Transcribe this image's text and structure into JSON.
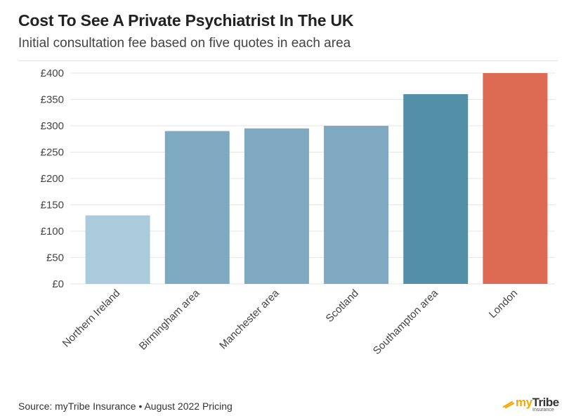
{
  "header": {
    "title": "Cost To See A Private Psychiatrist In The UK",
    "subtitle": "Initial consultation fee based on five quotes in each area"
  },
  "footer": {
    "source": "Source: myTribe Insurance • August 2022 Pricing"
  },
  "logo": {
    "brand_prefix": "my",
    "brand_suffix": "Tribe",
    "sub": "Insurance",
    "icon": "feather-icon"
  },
  "chart_data": {
    "type": "bar",
    "title": "Cost To See A Private Psychiatrist In The UK",
    "subtitle": "Initial consultation fee based on five quotes in each area",
    "categories": [
      "Northern Ireland",
      "Birmingham area",
      "Manchester area",
      "Scotland",
      "Southampton area",
      "London"
    ],
    "values": [
      130,
      290,
      295,
      300,
      360,
      400
    ],
    "bar_colors": [
      "#a9cbdc",
      "#7ea9c0",
      "#7ea9c0",
      "#7ea9c0",
      "#5390a7",
      "#dd6b54"
    ],
    "yticks": [
      0,
      50,
      100,
      150,
      200,
      250,
      300,
      350,
      400
    ],
    "ytick_labels": [
      "£0",
      "£50",
      "£100",
      "£150",
      "£200",
      "£250",
      "£300",
      "£350",
      "£400"
    ],
    "ylim": [
      0,
      400
    ],
    "xlabel": "",
    "ylabel": "",
    "grid": true,
    "legend": "none"
  }
}
